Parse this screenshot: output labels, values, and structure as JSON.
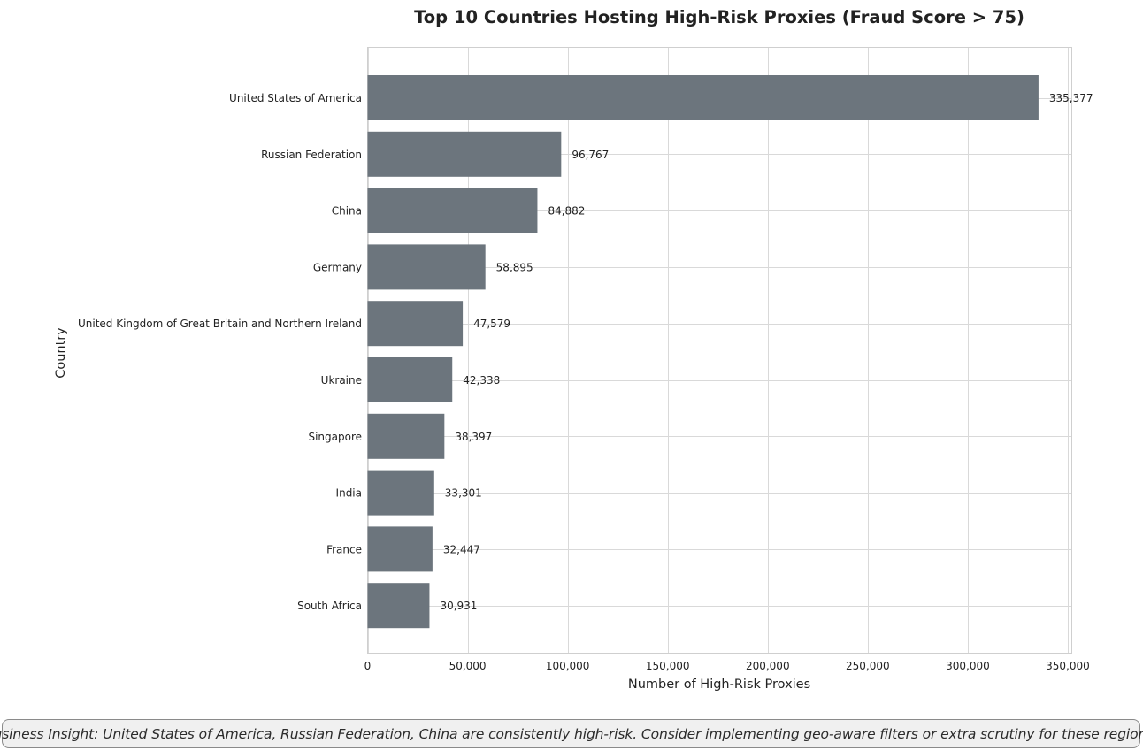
{
  "chart_data": {
    "type": "bar",
    "orientation": "horizontal",
    "title": "Top 10 Countries Hosting High-Risk Proxies (Fraud Score > 75)",
    "xlabel": "Number of High-Risk Proxies",
    "ylabel": "Country",
    "xlim": [
      0,
      352000
    ],
    "xticks": [
      0,
      50000,
      100000,
      150000,
      200000,
      250000,
      300000,
      350000
    ],
    "xtick_labels": [
      "0",
      "50,000",
      "100,000",
      "150,000",
      "200,000",
      "250,000",
      "300,000",
      "350,000"
    ],
    "grid": true,
    "bar_color": "#6c757d",
    "categories": [
      "United States of America",
      "Russian Federation",
      "China",
      "Germany",
      "United Kingdom of Great Britain and Northern Ireland",
      "Ukraine",
      "Singapore",
      "India",
      "France",
      "South Africa"
    ],
    "values": [
      335377,
      96767,
      84882,
      58895,
      47579,
      42338,
      38397,
      33301,
      32447,
      30931
    ],
    "value_labels": [
      "335,377",
      "96,767",
      "84,882",
      "58,895",
      "47,579",
      "42,338",
      "38,397",
      "33,301",
      "32,447",
      "30,931"
    ]
  },
  "insight": {
    "text": "Business Insight: United States of America, Russian Federation, China are consistently high-risk. Consider implementing geo-aware filters or extra scrutiny for these regions."
  }
}
